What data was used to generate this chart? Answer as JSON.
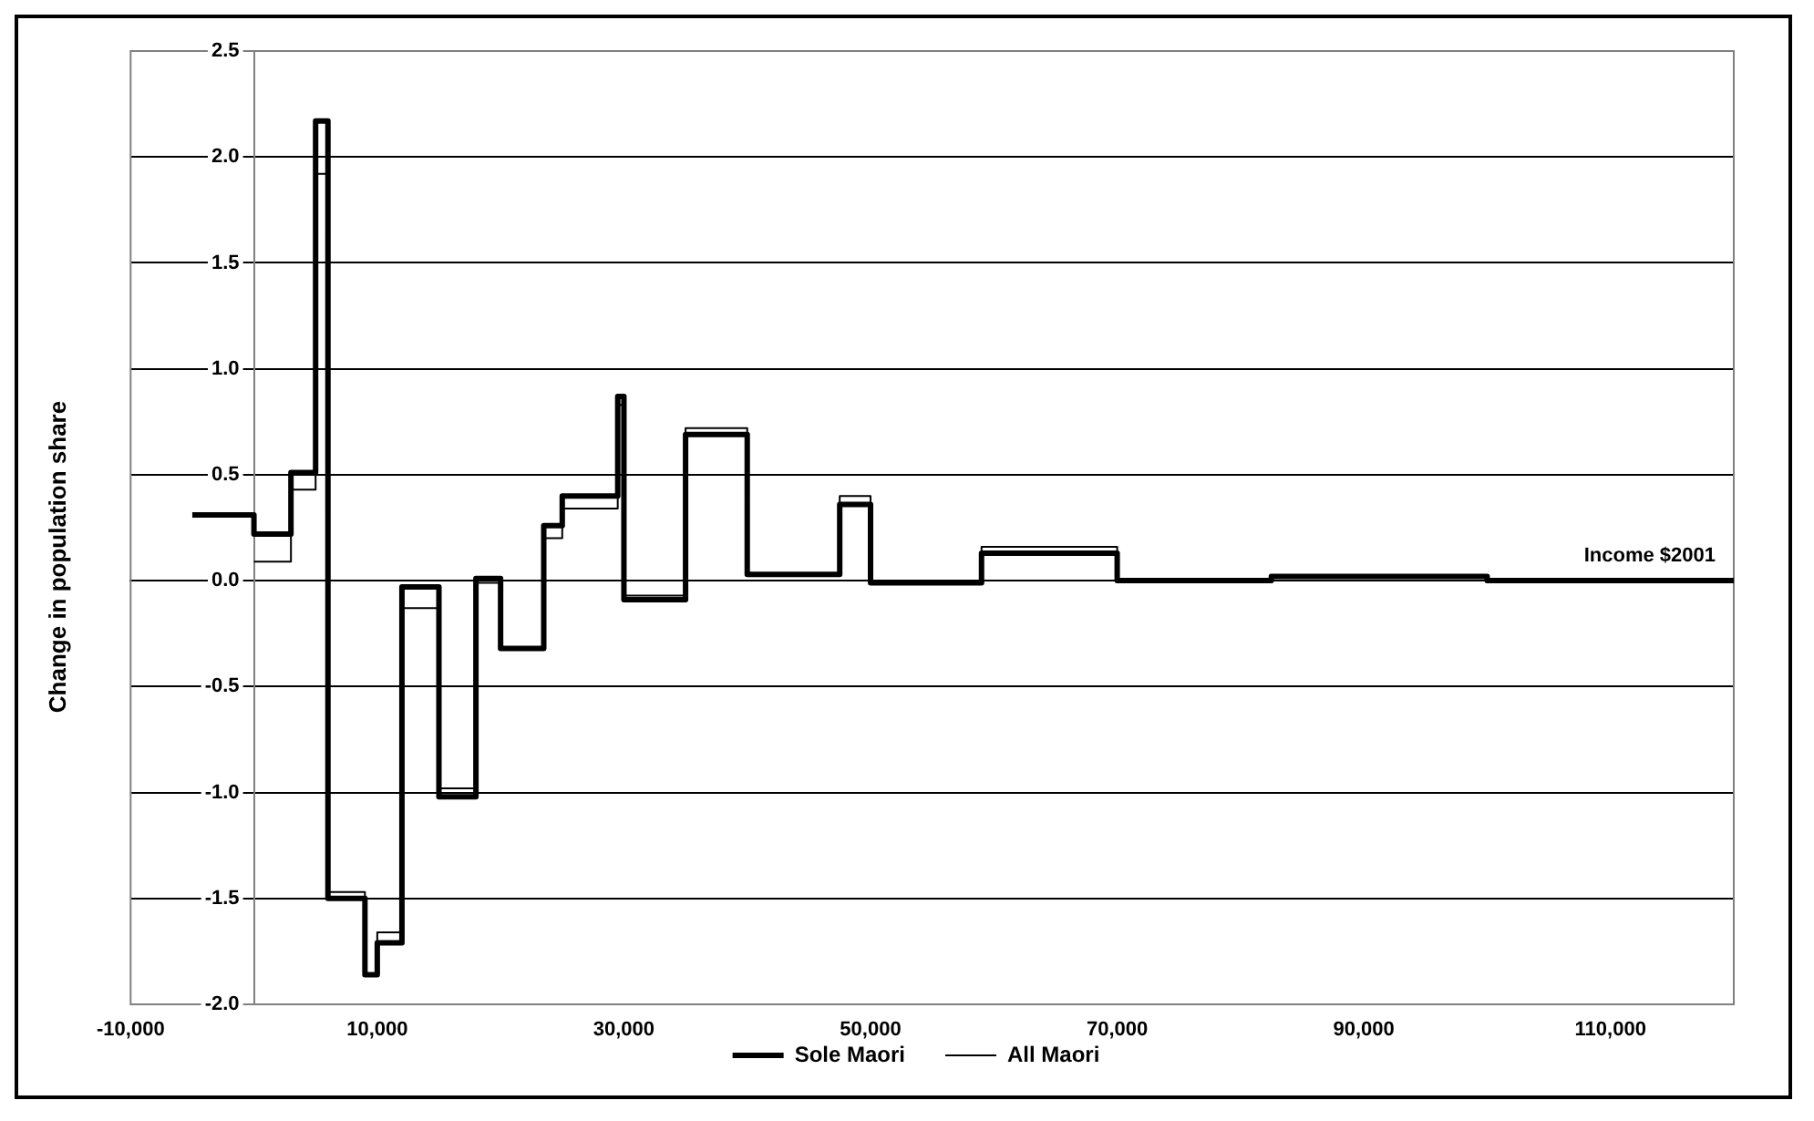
{
  "chart_data": {
    "type": "step",
    "xlabel": "Income $2001",
    "ylabel": "Change in population share",
    "xlim": [
      -10000,
      120000
    ],
    "ylim": [
      -2,
      2.5
    ],
    "xticks": [
      {
        "value": -10000,
        "label": "-10,000"
      },
      {
        "value": 10000,
        "label": "10,000"
      },
      {
        "value": 30000,
        "label": "30,000"
      },
      {
        "value": 50000,
        "label": "50,000"
      },
      {
        "value": 70000,
        "label": "70,000"
      },
      {
        "value": 90000,
        "label": "90,000"
      },
      {
        "value": 110000,
        "label": "110,000"
      }
    ],
    "yticks": [
      {
        "value": -2,
        "label": "-2.0"
      },
      {
        "value": -1.5,
        "label": "-1.5"
      },
      {
        "value": -1,
        "label": "-1.0"
      },
      {
        "value": -0.5,
        "label": "-0.5"
      },
      {
        "value": 0,
        "label": "0.0"
      },
      {
        "value": 0.5,
        "label": "0.5"
      },
      {
        "value": 1,
        "label": "1.0"
      },
      {
        "value": 1.5,
        "label": "1.5"
      },
      {
        "value": 2,
        "label": "2.0"
      },
      {
        "value": 2.5,
        "label": "2.5"
      }
    ],
    "grid": "y",
    "legend": "bottom",
    "marker": "none",
    "series": [
      {
        "name": "Sole Maori",
        "color": "#000000",
        "x": [
          -5000,
          0,
          3000,
          5000,
          6000,
          9000,
          10000,
          12000,
          15000,
          18000,
          20000,
          23500,
          25000,
          29500,
          30000,
          35000,
          40000,
          47500,
          50000,
          59000,
          70000,
          82500,
          100000,
          120000
        ],
        "values": [
          0.31,
          0.22,
          0.51,
          2.17,
          -1.5,
          -1.86,
          -1.71,
          -0.03,
          -1.02,
          0.01,
          -0.32,
          0.26,
          0.4,
          0.87,
          -0.09,
          0.69,
          0.03,
          0.36,
          -0.01,
          0.13,
          0,
          0.02,
          0,
          0
        ]
      },
      {
        "name": "All Maori",
        "color": "#000000",
        "x": [
          0,
          3000,
          5000,
          6000,
          9000,
          10000,
          12000,
          15000,
          18000,
          20000,
          23500,
          25000,
          29500,
          30000,
          35000,
          40000,
          47500,
          50000,
          59000,
          70000,
          82500,
          100000,
          120000
        ],
        "values": [
          0.09,
          0.43,
          1.92,
          -1.47,
          -1.86,
          -1.66,
          -0.13,
          -0.98,
          -0.01,
          -0.32,
          0.2,
          0.34,
          0.83,
          -0.07,
          0.72,
          0.03,
          0.4,
          -0.01,
          0.16,
          0,
          0.02,
          0,
          0
        ]
      }
    ]
  }
}
